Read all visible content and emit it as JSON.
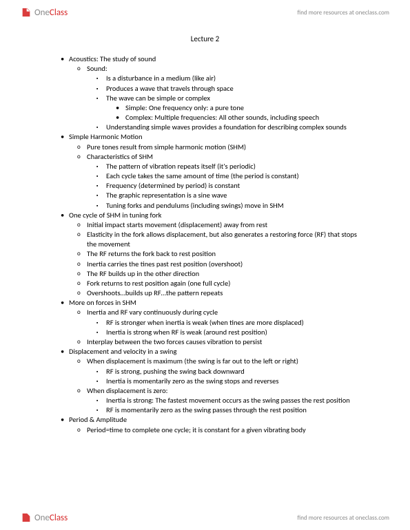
{
  "brand": {
    "one": "One",
    "class": "Class",
    "tagline": "find more resources at oneclass.com",
    "logo_fill": "#d62828"
  },
  "title": "Lecture 2",
  "lines": [
    {
      "level": 1,
      "text": "Acoustics: The study of sound"
    },
    {
      "level": 2,
      "text": "Sound:"
    },
    {
      "level": 3,
      "text": "Is a disturbance in a medium (like air)"
    },
    {
      "level": 3,
      "text": "Produces a wave that travels through space"
    },
    {
      "level": 3,
      "text": "The wave can be simple or complex"
    },
    {
      "level": 4,
      "text": "Simple: One frequency only: a pure tone"
    },
    {
      "level": 4,
      "text": "Complex: Multiple frequencies: All other sounds, including speech"
    },
    {
      "level": 3,
      "text": "Understanding simple waves provides a foundation for describing complex sounds"
    },
    {
      "level": 1,
      "text": "Simple Harmonic Motion"
    },
    {
      "level": 2,
      "text": "Pure tones result from simple harmonic motion (SHM)"
    },
    {
      "level": 2,
      "text": "Characteristics of SHM"
    },
    {
      "level": 3,
      "text": "The pattern of vibration repeats itself (it's periodic)"
    },
    {
      "level": 3,
      "text": "Each cycle takes the same amount of time (the period is constant)"
    },
    {
      "level": 3,
      "text": "Frequency (determined by period) is constant"
    },
    {
      "level": 3,
      "text": "The graphic representation is a sine wave"
    },
    {
      "level": 3,
      "text": "Tuning forks and pendulums (including swings) move in SHM"
    },
    {
      "level": 1,
      "text": "One cycle of SHM in tuning fork"
    },
    {
      "level": 2,
      "text": "Initial impact starts movement (displacement) away from rest"
    },
    {
      "level": 2,
      "text": "Elasticity in the fork allows displacement, but also generates a restoring force (RF) that stops the movement"
    },
    {
      "level": 2,
      "text": "The RF returns the fork back to rest position"
    },
    {
      "level": 2,
      "text": "Inertia carries the tines past rest position (overshoot)"
    },
    {
      "level": 2,
      "text": "The RF builds up in the other direction"
    },
    {
      "level": 2,
      "text": "Fork returns to rest position again (one full cycle)"
    },
    {
      "level": 2,
      "text": "Overshoots…builds up RF…the pattern repeats"
    },
    {
      "level": 1,
      "text": "More on forces in SHM"
    },
    {
      "level": 2,
      "text": "Inertia and RF vary continuously during cycle"
    },
    {
      "level": 3,
      "text": "RF is stronger when inertia is weak (when tines are more displaced)"
    },
    {
      "level": 3,
      "text": "Inertia is strong when RF is weak (around rest position)"
    },
    {
      "level": 2,
      "text": "Interplay between the two forces causes vibration to persist"
    },
    {
      "level": 1,
      "text": "Displacement and velocity in a swing"
    },
    {
      "level": 2,
      "text": "When displacement is maximum (the swing is far out to the left or right)"
    },
    {
      "level": 3,
      "text": "RF is strong, pushing the swing back downward"
    },
    {
      "level": 3,
      "text": "Inertia is momentarily zero as the swing stops and reverses"
    },
    {
      "level": 2,
      "text": "When displacement is zero:"
    },
    {
      "level": 3,
      "text": "Inertia is strong: The fastest movement occurs as the swing passes the rest position"
    },
    {
      "level": 3,
      "text": "RF is momentarily zero as the swing passes through the rest position"
    },
    {
      "level": 1,
      "text": "Period & Amplitude"
    },
    {
      "level": 2,
      "text": "Period=time to complete one cycle; it is constant for a given vibrating body"
    }
  ]
}
